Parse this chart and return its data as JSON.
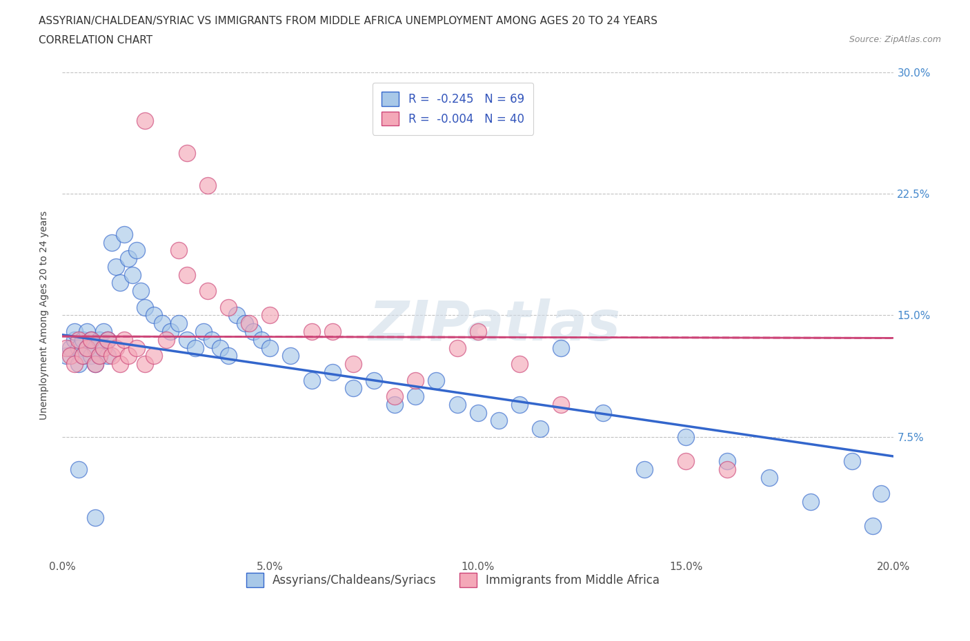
{
  "title_line1": "ASSYRIAN/CHALDEAN/SYRIAC VS IMMIGRANTS FROM MIDDLE AFRICA UNEMPLOYMENT AMONG AGES 20 TO 24 YEARS",
  "title_line2": "CORRELATION CHART",
  "source_text": "Source: ZipAtlas.com",
  "watermark": "ZIPatlas",
  "ylabel": "Unemployment Among Ages 20 to 24 years",
  "xlim": [
    0.0,
    0.2
  ],
  "ylim": [
    0.0,
    0.3
  ],
  "xticks": [
    0.0,
    0.05,
    0.1,
    0.15,
    0.2
  ],
  "xticklabels": [
    "0.0%",
    "5.0%",
    "10.0%",
    "15.0%",
    "20.0%"
  ],
  "yticks": [
    0.0,
    0.075,
    0.15,
    0.225,
    0.3
  ],
  "yticklabels": [
    "",
    "7.5%",
    "15.0%",
    "22.5%",
    "30.0%"
  ],
  "blue_R": -0.245,
  "blue_N": 69,
  "pink_R": -0.004,
  "pink_N": 40,
  "blue_color": "#a8c8e8",
  "pink_color": "#f4a8b8",
  "blue_line_color": "#3366cc",
  "pink_line_color": "#cc4477",
  "grid_color": "#c0c0c0",
  "background_color": "#ffffff",
  "tick_color": "#4488cc",
  "legend_text_color": "#3355bb",
  "blue_scatter_x": [
    0.001,
    0.002,
    0.003,
    0.003,
    0.004,
    0.004,
    0.005,
    0.005,
    0.006,
    0.006,
    0.007,
    0.007,
    0.008,
    0.008,
    0.009,
    0.009,
    0.01,
    0.01,
    0.011,
    0.011,
    0.012,
    0.013,
    0.014,
    0.015,
    0.016,
    0.017,
    0.018,
    0.019,
    0.02,
    0.022,
    0.024,
    0.026,
    0.028,
    0.03,
    0.032,
    0.034,
    0.036,
    0.038,
    0.04,
    0.042,
    0.044,
    0.046,
    0.048,
    0.05,
    0.055,
    0.06,
    0.065,
    0.07,
    0.075,
    0.08,
    0.085,
    0.09,
    0.095,
    0.1,
    0.105,
    0.11,
    0.115,
    0.12,
    0.13,
    0.14,
    0.15,
    0.16,
    0.17,
    0.18,
    0.19,
    0.195,
    0.197,
    0.004,
    0.008
  ],
  "blue_scatter_y": [
    0.125,
    0.13,
    0.135,
    0.14,
    0.12,
    0.13,
    0.125,
    0.135,
    0.13,
    0.14,
    0.125,
    0.135,
    0.12,
    0.13,
    0.125,
    0.135,
    0.13,
    0.14,
    0.125,
    0.135,
    0.195,
    0.18,
    0.17,
    0.2,
    0.185,
    0.175,
    0.19,
    0.165,
    0.155,
    0.15,
    0.145,
    0.14,
    0.145,
    0.135,
    0.13,
    0.14,
    0.135,
    0.13,
    0.125,
    0.15,
    0.145,
    0.14,
    0.135,
    0.13,
    0.125,
    0.11,
    0.115,
    0.105,
    0.11,
    0.095,
    0.1,
    0.11,
    0.095,
    0.09,
    0.085,
    0.095,
    0.08,
    0.13,
    0.09,
    0.055,
    0.075,
    0.06,
    0.05,
    0.035,
    0.06,
    0.02,
    0.04,
    0.055,
    0.025
  ],
  "pink_scatter_x": [
    0.001,
    0.002,
    0.003,
    0.004,
    0.005,
    0.006,
    0.007,
    0.008,
    0.009,
    0.01,
    0.011,
    0.012,
    0.013,
    0.014,
    0.015,
    0.016,
    0.018,
    0.02,
    0.022,
    0.025,
    0.028,
    0.03,
    0.035,
    0.04,
    0.045,
    0.05,
    0.06,
    0.065,
    0.07,
    0.08,
    0.085,
    0.095,
    0.1,
    0.11,
    0.12,
    0.15,
    0.16,
    0.02,
    0.03,
    0.035
  ],
  "pink_scatter_y": [
    0.13,
    0.125,
    0.12,
    0.135,
    0.125,
    0.13,
    0.135,
    0.12,
    0.125,
    0.13,
    0.135,
    0.125,
    0.13,
    0.12,
    0.135,
    0.125,
    0.13,
    0.12,
    0.125,
    0.135,
    0.19,
    0.175,
    0.165,
    0.155,
    0.145,
    0.15,
    0.14,
    0.14,
    0.12,
    0.1,
    0.11,
    0.13,
    0.14,
    0.12,
    0.095,
    0.06,
    0.055,
    0.27,
    0.25,
    0.23
  ],
  "blue_trendline_x0": 0.0,
  "blue_trendline_y0": 0.138,
  "blue_trendline_x1": 0.2,
  "blue_trendline_y1": 0.063,
  "pink_trendline_x0": 0.0,
  "pink_trendline_y0": 0.137,
  "pink_trendline_x1": 0.2,
  "pink_trendline_y1": 0.136,
  "title_fontsize": 11,
  "axis_fontsize": 10,
  "tick_fontsize": 11,
  "legend_fontsize": 12
}
